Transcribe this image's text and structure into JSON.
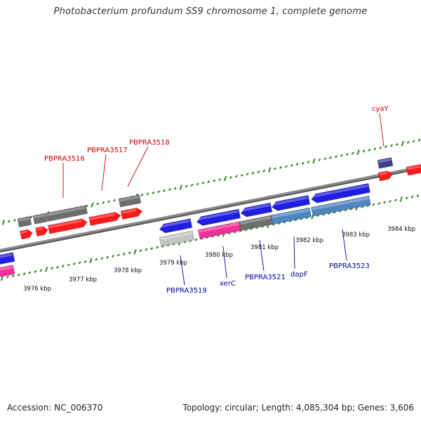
{
  "title": "Photobacterium profundum SS9 chromosome 1, complete genome",
  "footer": {
    "accession": "Accession: NC_006370",
    "summary": "Topology: circular; Length: 4,085,304 bp; Genes: 3,606"
  },
  "colors": {
    "backbone": "#8a8a8a",
    "tick": "#2e8b1f",
    "gene_red": "#ff1a1a",
    "gene_grey": "#6e6e6e",
    "gene_blue": "#1f1fe0",
    "gene_steel": "#4f86c0",
    "gene_pink": "#f0309a",
    "gene_lightgrey": "#c4c4c4",
    "gene_navy": "#3d3d8f",
    "label_forward": "#cc0000",
    "label_reverse": "#0000aa"
  },
  "ruler_labels": [
    "3976 kbp",
    "3977 kbp",
    "3978 kbp",
    "3979 kbp",
    "3980 kbp",
    "3981 kbp",
    "3982 kbp",
    "3983 kbp",
    "3984 kbp"
  ],
  "gene_labels": {
    "forward": [
      "PBPRA3516",
      "PBPRA3517",
      "PBPRA3518",
      "cyaY"
    ],
    "reverse": [
      "PBPRA3519",
      "xerC",
      "PBPRA3521",
      "dapF",
      "PBPRA3523"
    ]
  }
}
